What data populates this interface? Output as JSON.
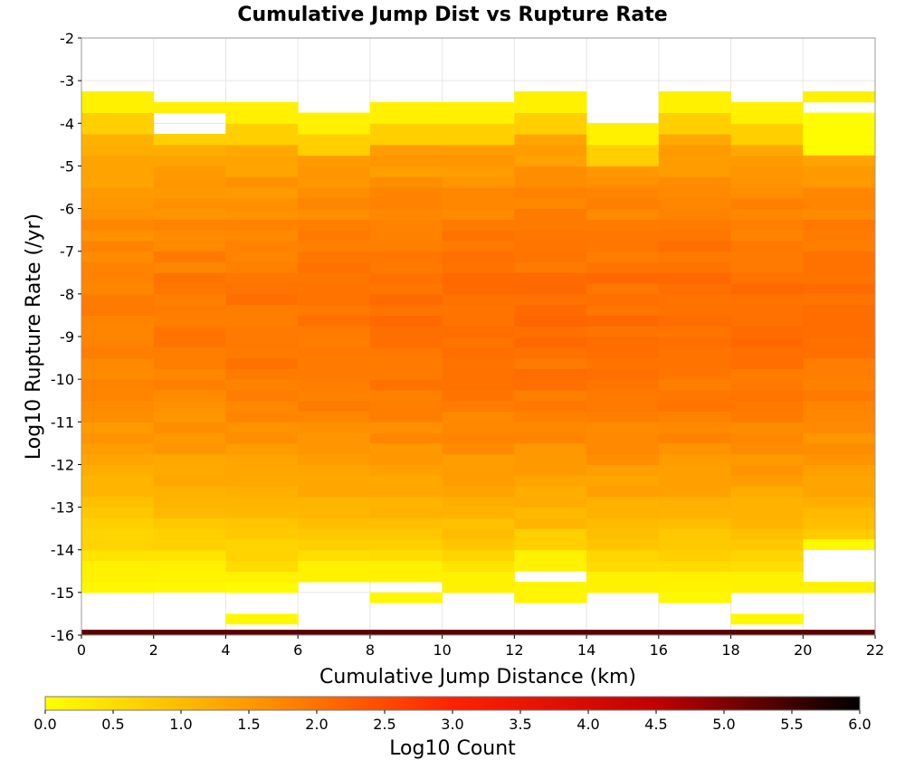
{
  "chart_data": {
    "type": "heatmap",
    "title": "Cumulative Jump Dist vs Rupture Rate",
    "xlabel": "Cumulative Jump Distance (km)",
    "ylabel": "Log10 Rupture Rate (/yr)",
    "xlim": [
      0,
      22
    ],
    "ylim": [
      -16,
      -2
    ],
    "x_ticks": [
      "0",
      "2",
      "4",
      "6",
      "8",
      "10",
      "12",
      "14",
      "16",
      "18",
      "20",
      "22"
    ],
    "y_ticks": [
      "-2",
      "-3",
      "-4",
      "-5",
      "-6",
      "-7",
      "-8",
      "-9",
      "-10",
      "-11",
      "-12",
      "-13",
      "-14",
      "-15",
      "-16"
    ],
    "x_bin_width": 2,
    "y_bin_height": 0.25,
    "colorbar": {
      "label": "Log10 Count",
      "range": [
        0,
        6
      ],
      "ticks": [
        "0.0",
        "0.5",
        "1.0",
        "1.5",
        "2.0",
        "2.5",
        "3.0",
        "3.5",
        "4.0",
        "4.5",
        "5.0",
        "5.5",
        "6.0"
      ],
      "colors": [
        "#ffff00",
        "#ff9900",
        "#ff2200",
        "#c00000",
        "#000000"
      ]
    },
    "columns": [
      {
        "x0": 0,
        "top": -3.25,
        "bottom": -15.0,
        "extra": [
          [
            -16.0,
            -15.875,
            5.3
          ]
        ],
        "blanks": []
      },
      {
        "x0": 2,
        "top": -3.5,
        "bottom": -14.75,
        "extra": [
          [
            -15.0,
            -14.75,
            0.1
          ],
          [
            -16.0,
            -15.875,
            5.3
          ]
        ],
        "blanks": [
          [
            -4.25,
            -3.75
          ]
        ]
      },
      {
        "x0": 4,
        "top": -3.5,
        "bottom": -15.0,
        "extra": [
          [
            -15.75,
            -15.5,
            0.1
          ],
          [
            -16.0,
            -15.875,
            5.3
          ]
        ],
        "blanks": []
      },
      {
        "x0": 6,
        "top": -3.75,
        "bottom": -14.75,
        "extra": [
          [
            -16.0,
            -15.875,
            5.3
          ]
        ],
        "blanks": []
      },
      {
        "x0": 8,
        "top": -3.5,
        "bottom": -14.75,
        "extra": [
          [
            -15.25,
            -15.0,
            0.1
          ],
          [
            -16.0,
            -15.875,
            5.3
          ]
        ],
        "blanks": []
      },
      {
        "x0": 10,
        "top": -3.5,
        "bottom": -15.0,
        "extra": [
          [
            -16.0,
            -15.875,
            5.3
          ]
        ],
        "blanks": []
      },
      {
        "x0": 12,
        "top": -3.25,
        "bottom": -14.5,
        "extra": [
          [
            -15.25,
            -14.75,
            0.15
          ],
          [
            -16.0,
            -15.875,
            5.3
          ]
        ],
        "blanks": []
      },
      {
        "x0": 14,
        "top": -4.0,
        "bottom": -15.0,
        "extra": [
          [
            -16.0,
            -15.875,
            5.3
          ]
        ],
        "blanks": []
      },
      {
        "x0": 16,
        "top": -3.25,
        "bottom": -15.0,
        "extra": [
          [
            -15.25,
            -15.0,
            0.1
          ],
          [
            -16.0,
            -15.875,
            5.3
          ]
        ],
        "blanks": []
      },
      {
        "x0": 18,
        "top": -3.5,
        "bottom": -15.0,
        "extra": [
          [
            -15.75,
            -15.5,
            0.1
          ],
          [
            -16.0,
            -15.875,
            5.3
          ]
        ],
        "blanks": []
      },
      {
        "x0": 20,
        "top": -3.25,
        "bottom": -15.0,
        "extra": [
          [
            -16.0,
            -15.875,
            5.3
          ]
        ],
        "blanks": [
          [
            -4.75,
            -3.5
          ],
          [
            -14.75,
            -13.75
          ]
        ]
      }
    ],
    "extra_yellow": [
      [
        20,
        -4.75,
        -3.75,
        0.05
      ],
      [
        20,
        -14.0,
        -13.75,
        0.1
      ]
    ]
  }
}
